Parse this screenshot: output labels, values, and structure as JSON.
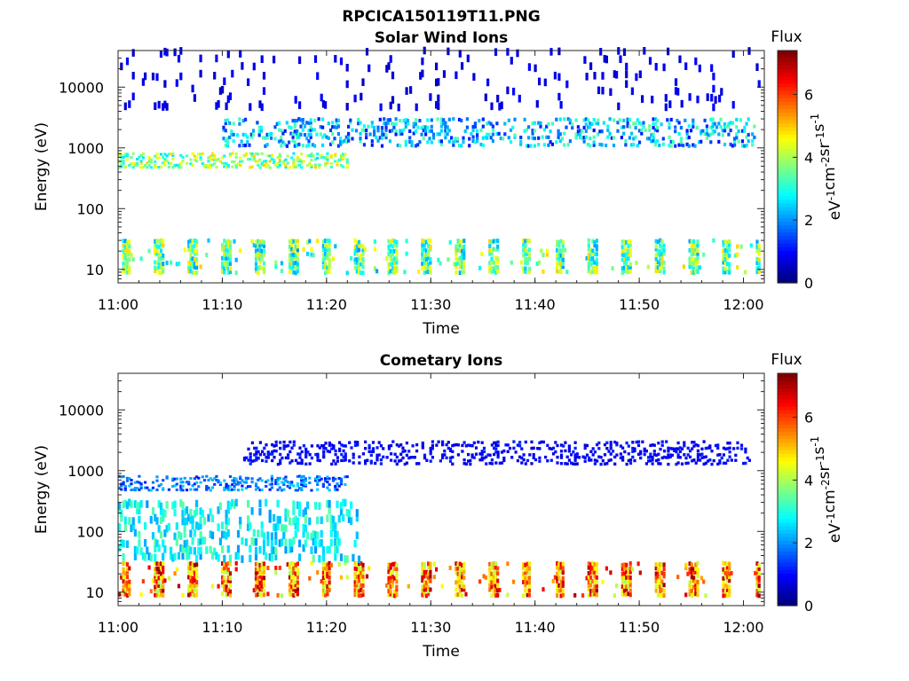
{
  "figure": {
    "file_title": "RPCICA150119T11.PNG"
  },
  "chart_data": [
    {
      "type": "heatmap",
      "title": "Solar Wind Ions",
      "xlabel": "Time",
      "ylabel": "Energy (eV)",
      "xlim": [
        "11:00",
        "12:02"
      ],
      "ylim": [
        6,
        40000
      ],
      "yscale": "log",
      "x_ticks": [
        "11:00",
        "11:10",
        "11:20",
        "11:30",
        "11:40",
        "11:50",
        "12:00"
      ],
      "y_ticks": [
        "10",
        "100",
        "1000",
        "10000"
      ],
      "colorbar": {
        "label": "Flux",
        "units": "eV-1cm-2sr-1s-1",
        "range": [
          0,
          7.4
        ],
        "ticks": [
          "0",
          "2",
          "4",
          "6"
        ],
        "colormap": "jet"
      },
      "features": [
        {
          "energy_band": "8-30 eV",
          "pattern": "periodic bursts every ~3.2 min",
          "flux_range": [
            2,
            5
          ]
        },
        {
          "energy_band": "450-800 eV",
          "time_range": [
            "11:00",
            "11:22"
          ],
          "flux_range": [
            2.5,
            5
          ]
        },
        {
          "energy_band": "1000-3000 eV",
          "time_range": [
            "11:10",
            "12:01"
          ],
          "flux_range": [
            1,
            3.5
          ]
        },
        {
          "energy_band": "4000-40000 eV",
          "pattern": "sparse",
          "flux_range": [
            0.5,
            1
          ]
        }
      ]
    },
    {
      "type": "heatmap",
      "title": "Cometary Ions",
      "xlabel": "Time",
      "ylabel": "Energy (eV)",
      "xlim": [
        "11:00",
        "12:02"
      ],
      "ylim": [
        6,
        40000
      ],
      "yscale": "log",
      "x_ticks": [
        "11:00",
        "11:10",
        "11:20",
        "11:30",
        "11:40",
        "11:50",
        "12:00"
      ],
      "y_ticks": [
        "10",
        "100",
        "1000",
        "10000"
      ],
      "colorbar": {
        "label": "Flux",
        "units": "eV-1cm-2sr-1s-1",
        "range": [
          0,
          7.4
        ],
        "ticks": [
          "0",
          "2",
          "4",
          "6"
        ],
        "colormap": "jet"
      },
      "features": [
        {
          "energy_band": "8-30 eV",
          "pattern": "periodic bursts every ~3.2 min",
          "flux_range": [
            4,
            7.2
          ]
        },
        {
          "energy_band": "30-300 eV",
          "time_range": [
            "11:00",
            "11:23"
          ],
          "flux_range": [
            2,
            3.5
          ]
        },
        {
          "energy_band": "450-800 eV",
          "time_range": [
            "11:00",
            "11:22"
          ],
          "flux_range": [
            1,
            2.5
          ]
        },
        {
          "energy_band": "1200-3000 eV",
          "time_range": [
            "11:12",
            "12:01"
          ],
          "flux_range": [
            0.6,
            1.2
          ]
        }
      ]
    }
  ]
}
